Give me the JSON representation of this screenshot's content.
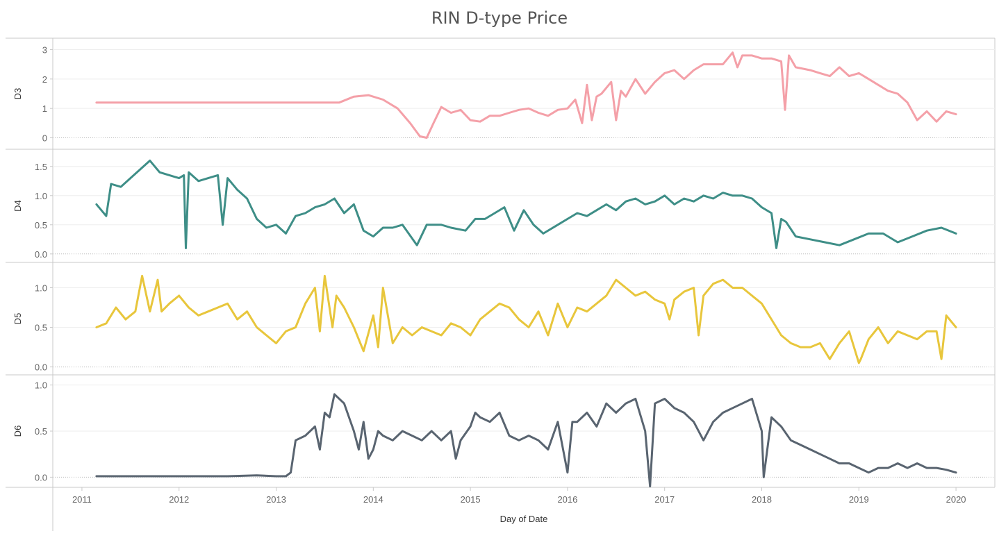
{
  "chart_data": {
    "type": "line",
    "title": "RIN D-type Price",
    "xlabel": "Day of Date",
    "x_ticks": [
      "2011",
      "2012",
      "2013",
      "2014",
      "2015",
      "2016",
      "2017",
      "2018",
      "2019",
      "2020"
    ],
    "xlim": [
      2010.7,
      2020.4
    ],
    "grid": true,
    "panels": [
      {
        "name": "D3",
        "color": "#F4A0A8",
        "ylim": [
          -0.2,
          3.2
        ],
        "ticks": [
          0,
          1,
          2,
          3
        ],
        "tick_labels": [
          "0",
          "1",
          "2",
          "3"
        ],
        "x": [
          2011.15,
          2013.65,
          2013.8,
          2013.95,
          2014.1,
          2014.25,
          2014.38,
          2014.48,
          2014.55,
          2014.62,
          2014.7,
          2014.8,
          2014.9,
          2015.0,
          2015.1,
          2015.2,
          2015.3,
          2015.4,
          2015.5,
          2015.6,
          2015.7,
          2015.8,
          2015.9,
          2016.0,
          2016.08,
          2016.15,
          2016.2,
          2016.25,
          2016.3,
          2016.35,
          2016.45,
          2016.5,
          2016.55,
          2016.6,
          2016.7,
          2016.8,
          2016.9,
          2017.0,
          2017.1,
          2017.2,
          2017.3,
          2017.4,
          2017.5,
          2017.6,
          2017.7,
          2017.75,
          2017.8,
          2017.9,
          2018.0,
          2018.1,
          2018.2,
          2018.24,
          2018.28,
          2018.35,
          2018.5,
          2018.6,
          2018.7,
          2018.8,
          2018.9,
          2019.0,
          2019.1,
          2019.2,
          2019.3,
          2019.4,
          2019.5,
          2019.6,
          2019.7,
          2019.8,
          2019.9,
          2020.0
        ],
        "values": [
          1.2,
          1.2,
          1.4,
          1.45,
          1.3,
          1.0,
          0.5,
          0.05,
          0.0,
          0.5,
          1.05,
          0.85,
          0.95,
          0.6,
          0.55,
          0.75,
          0.75,
          0.85,
          0.95,
          1.0,
          0.85,
          0.75,
          0.95,
          1.0,
          1.3,
          0.5,
          1.8,
          0.6,
          1.4,
          1.5,
          1.9,
          0.6,
          1.6,
          1.4,
          2.0,
          1.5,
          1.9,
          2.2,
          2.3,
          2.0,
          2.3,
          2.5,
          2.5,
          2.5,
          2.9,
          2.4,
          2.8,
          2.8,
          2.7,
          2.7,
          2.6,
          0.95,
          2.8,
          2.4,
          2.3,
          2.2,
          2.1,
          2.4,
          2.1,
          2.2,
          2.0,
          1.8,
          1.6,
          1.5,
          1.2,
          0.6,
          0.9,
          0.55,
          0.9,
          0.8
        ]
      },
      {
        "name": "D4",
        "color": "#3E8E87",
        "ylim": [
          -0.05,
          1.7
        ],
        "ticks": [
          0,
          0.5,
          1.0,
          1.5
        ],
        "tick_labels": [
          "0.0",
          "0.5",
          "1.0",
          "1.5"
        ],
        "x": [
          2011.15,
          2011.25,
          2011.3,
          2011.4,
          2011.5,
          2011.6,
          2011.7,
          2011.8,
          2011.9,
          2012.0,
          2012.05,
          2012.07,
          2012.1,
          2012.2,
          2012.3,
          2012.4,
          2012.45,
          2012.5,
          2012.6,
          2012.7,
          2012.8,
          2012.9,
          2013.0,
          2013.1,
          2013.2,
          2013.3,
          2013.4,
          2013.5,
          2013.6,
          2013.7,
          2013.8,
          2013.9,
          2014.0,
          2014.1,
          2014.2,
          2014.3,
          2014.45,
          2014.55,
          2014.7,
          2014.8,
          2014.95,
          2015.05,
          2015.15,
          2015.25,
          2015.35,
          2015.45,
          2015.55,
          2015.65,
          2015.75,
          2015.9,
          2016.0,
          2016.1,
          2016.2,
          2016.3,
          2016.4,
          2016.5,
          2016.6,
          2016.7,
          2016.8,
          2016.9,
          2017.0,
          2017.1,
          2017.2,
          2017.3,
          2017.4,
          2017.5,
          2017.6,
          2017.7,
          2017.8,
          2017.9,
          2018.0,
          2018.1,
          2018.15,
          2018.2,
          2018.25,
          2018.35,
          2018.5,
          2018.65,
          2018.8,
          2018.95,
          2019.1,
          2019.25,
          2019.4,
          2019.55,
          2019.7,
          2019.85,
          2020.0
        ],
        "values": [
          0.85,
          0.65,
          1.2,
          1.15,
          1.3,
          1.45,
          1.6,
          1.4,
          1.35,
          1.3,
          1.35,
          0.1,
          1.4,
          1.25,
          1.3,
          1.35,
          0.5,
          1.3,
          1.1,
          0.95,
          0.6,
          0.45,
          0.5,
          0.35,
          0.65,
          0.7,
          0.8,
          0.85,
          0.95,
          0.7,
          0.85,
          0.4,
          0.3,
          0.45,
          0.45,
          0.5,
          0.15,
          0.5,
          0.5,
          0.45,
          0.4,
          0.6,
          0.6,
          0.7,
          0.8,
          0.4,
          0.75,
          0.5,
          0.35,
          0.5,
          0.6,
          0.7,
          0.65,
          0.75,
          0.85,
          0.75,
          0.9,
          0.95,
          0.85,
          0.9,
          1.0,
          0.85,
          0.95,
          0.9,
          1.0,
          0.95,
          1.05,
          1.0,
          1.0,
          0.95,
          0.8,
          0.7,
          0.1,
          0.6,
          0.55,
          0.3,
          0.25,
          0.2,
          0.15,
          0.25,
          0.35,
          0.35,
          0.2,
          0.3,
          0.4,
          0.45,
          0.35
        ]
      },
      {
        "name": "D5",
        "color": "#E8C63C",
        "ylim": [
          -0.03,
          1.25
        ],
        "ticks": [
          0,
          0.5,
          1.0
        ],
        "tick_labels": [
          "0.0",
          "0.5",
          "1.0"
        ],
        "x": [
          2011.15,
          2011.25,
          2011.35,
          2011.45,
          2011.55,
          2011.62,
          2011.7,
          2011.78,
          2011.82,
          2011.9,
          2012.0,
          2012.1,
          2012.2,
          2012.3,
          2012.4,
          2012.5,
          2012.6,
          2012.7,
          2012.8,
          2012.9,
          2013.0,
          2013.1,
          2013.2,
          2013.3,
          2013.4,
          2013.45,
          2013.5,
          2013.58,
          2013.62,
          2013.7,
          2013.8,
          2013.9,
          2014.0,
          2014.05,
          2014.1,
          2014.2,
          2014.3,
          2014.4,
          2014.5,
          2014.6,
          2014.7,
          2014.8,
          2014.9,
          2015.0,
          2015.1,
          2015.2,
          2015.3,
          2015.4,
          2015.5,
          2015.6,
          2015.7,
          2015.8,
          2015.9,
          2016.0,
          2016.1,
          2016.2,
          2016.3,
          2016.4,
          2016.5,
          2016.6,
          2016.7,
          2016.8,
          2016.9,
          2017.0,
          2017.05,
          2017.1,
          2017.2,
          2017.3,
          2017.35,
          2017.4,
          2017.5,
          2017.6,
          2017.7,
          2017.8,
          2017.9,
          2018.0,
          2018.1,
          2018.2,
          2018.3,
          2018.4,
          2018.5,
          2018.6,
          2018.7,
          2018.8,
          2018.9,
          2019.0,
          2019.02,
          2019.1,
          2019.2,
          2019.3,
          2019.4,
          2019.5,
          2019.6,
          2019.7,
          2019.8,
          2019.85,
          2019.9,
          2020.0
        ],
        "values": [
          0.5,
          0.55,
          0.75,
          0.6,
          0.7,
          1.15,
          0.7,
          1.1,
          0.7,
          0.8,
          0.9,
          0.75,
          0.65,
          0.7,
          0.75,
          0.8,
          0.6,
          0.7,
          0.5,
          0.4,
          0.3,
          0.45,
          0.5,
          0.8,
          1.0,
          0.45,
          1.15,
          0.5,
          0.9,
          0.75,
          0.5,
          0.2,
          0.65,
          0.25,
          1.0,
          0.3,
          0.5,
          0.4,
          0.5,
          0.45,
          0.4,
          0.55,
          0.5,
          0.4,
          0.6,
          0.7,
          0.8,
          0.75,
          0.6,
          0.5,
          0.7,
          0.4,
          0.8,
          0.5,
          0.75,
          0.7,
          0.8,
          0.9,
          1.1,
          1.0,
          0.9,
          0.95,
          0.85,
          0.8,
          0.6,
          0.85,
          0.95,
          1.0,
          0.4,
          0.9,
          1.05,
          1.1,
          1.0,
          1.0,
          0.9,
          0.8,
          0.6,
          0.4,
          0.3,
          0.25,
          0.25,
          0.3,
          0.1,
          0.3,
          0.45,
          0.05,
          0.1,
          0.35,
          0.5,
          0.3,
          0.45,
          0.4,
          0.35,
          0.45,
          0.45,
          0.1,
          0.65,
          0.5
        ]
      },
      {
        "name": "D6",
        "color": "#596470",
        "ylim": [
          -0.05,
          1.05
        ],
        "ticks": [
          0,
          0.5,
          1.0
        ],
        "tick_labels": [
          "0.0",
          "0.5",
          "1.0"
        ],
        "x": [
          2011.15,
          2011.5,
          2012.0,
          2012.5,
          2012.8,
          2013.0,
          2013.1,
          2013.15,
          2013.2,
          2013.3,
          2013.4,
          2013.45,
          2013.5,
          2013.55,
          2013.6,
          2013.7,
          2013.8,
          2013.85,
          2013.9,
          2013.95,
          2014.0,
          2014.05,
          2014.1,
          2014.2,
          2014.3,
          2014.4,
          2014.5,
          2014.6,
          2014.7,
          2014.8,
          2014.85,
          2014.9,
          2015.0,
          2015.05,
          2015.1,
          2015.2,
          2015.3,
          2015.4,
          2015.5,
          2015.6,
          2015.7,
          2015.8,
          2015.9,
          2016.0,
          2016.05,
          2016.1,
          2016.2,
          2016.3,
          2016.4,
          2016.5,
          2016.6,
          2016.7,
          2016.8,
          2016.85,
          2016.9,
          2017.0,
          2017.1,
          2017.2,
          2017.3,
          2017.4,
          2017.5,
          2017.6,
          2017.7,
          2017.8,
          2017.9,
          2018.0,
          2018.02,
          2018.1,
          2018.2,
          2018.3,
          2018.4,
          2018.5,
          2018.6,
          2018.7,
          2018.8,
          2018.9,
          2019.0,
          2019.1,
          2019.2,
          2019.3,
          2019.4,
          2019.5,
          2019.6,
          2019.7,
          2019.8,
          2019.9,
          2020.0
        ],
        "values": [
          0.01,
          0.01,
          0.01,
          0.01,
          0.02,
          0.01,
          0.01,
          0.05,
          0.4,
          0.45,
          0.55,
          0.3,
          0.7,
          0.65,
          0.9,
          0.8,
          0.5,
          0.3,
          0.6,
          0.2,
          0.3,
          0.5,
          0.45,
          0.4,
          0.5,
          0.45,
          0.4,
          0.5,
          0.4,
          0.5,
          0.2,
          0.4,
          0.55,
          0.7,
          0.65,
          0.6,
          0.7,
          0.45,
          0.4,
          0.45,
          0.4,
          0.3,
          0.6,
          0.05,
          0.6,
          0.6,
          0.7,
          0.55,
          0.8,
          0.7,
          0.8,
          0.85,
          0.5,
          -0.1,
          0.8,
          0.85,
          0.75,
          0.7,
          0.6,
          0.4,
          0.6,
          0.7,
          0.75,
          0.8,
          0.85,
          0.5,
          0.0,
          0.65,
          0.55,
          0.4,
          0.35,
          0.3,
          0.25,
          0.2,
          0.15,
          0.15,
          0.1,
          0.05,
          0.1,
          0.1,
          0.15,
          0.1,
          0.15,
          0.1,
          0.1,
          0.08,
          0.05
        ]
      }
    ]
  }
}
